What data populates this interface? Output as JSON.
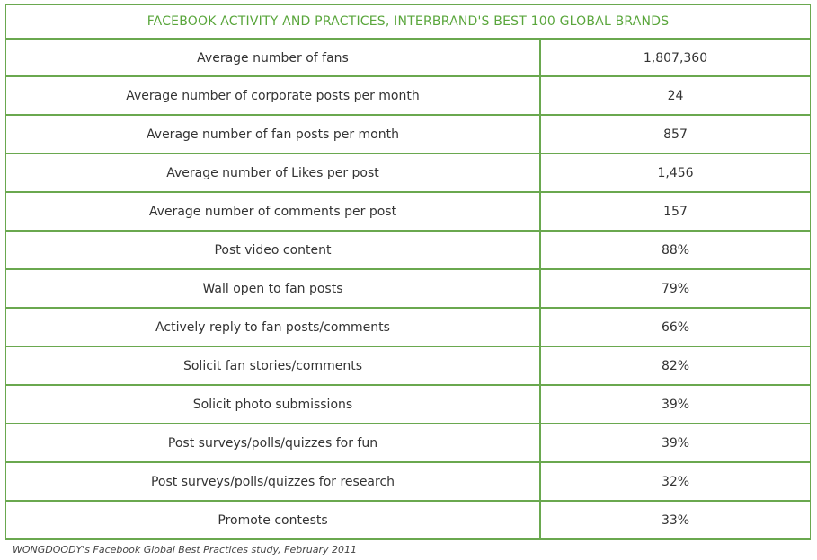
{
  "colors": {
    "border": "#6aa84f",
    "title_text": "#5aa63c",
    "body_text": "#333333"
  },
  "chart_data": {
    "type": "table",
    "title": "FACEBOOK ACTIVITY AND PRACTICES, INTERBRAND'S BEST 100 GLOBAL BRANDS",
    "columns": [
      "",
      ""
    ],
    "rows": [
      {
        "label": "Average number of fans",
        "value": "1,807,360"
      },
      {
        "label": "Average number of corporate posts per month",
        "value": "24"
      },
      {
        "label": "Average number of fan posts per month",
        "value": "857"
      },
      {
        "label": "Average number of Likes per post",
        "value": "1,456"
      },
      {
        "label": "Average number of comments per post",
        "value": "157"
      },
      {
        "label": "Post video content",
        "value": "88%"
      },
      {
        "label": "Wall open to fan posts",
        "value": "79%"
      },
      {
        "label": "Actively reply to fan posts/comments",
        "value": "66%"
      },
      {
        "label": "Solicit fan stories/comments",
        "value": "82%"
      },
      {
        "label": "Solicit photo submissions",
        "value": "39%"
      },
      {
        "label": "Post surveys/polls/quizzes for fun",
        "value": "39%"
      },
      {
        "label": "Post surveys/polls/quizzes for research",
        "value": "32%"
      },
      {
        "label": "Promote contests",
        "value": "33%"
      }
    ],
    "source": "WONGDOODY's Facebook Global Best Practices study, February 2011"
  }
}
